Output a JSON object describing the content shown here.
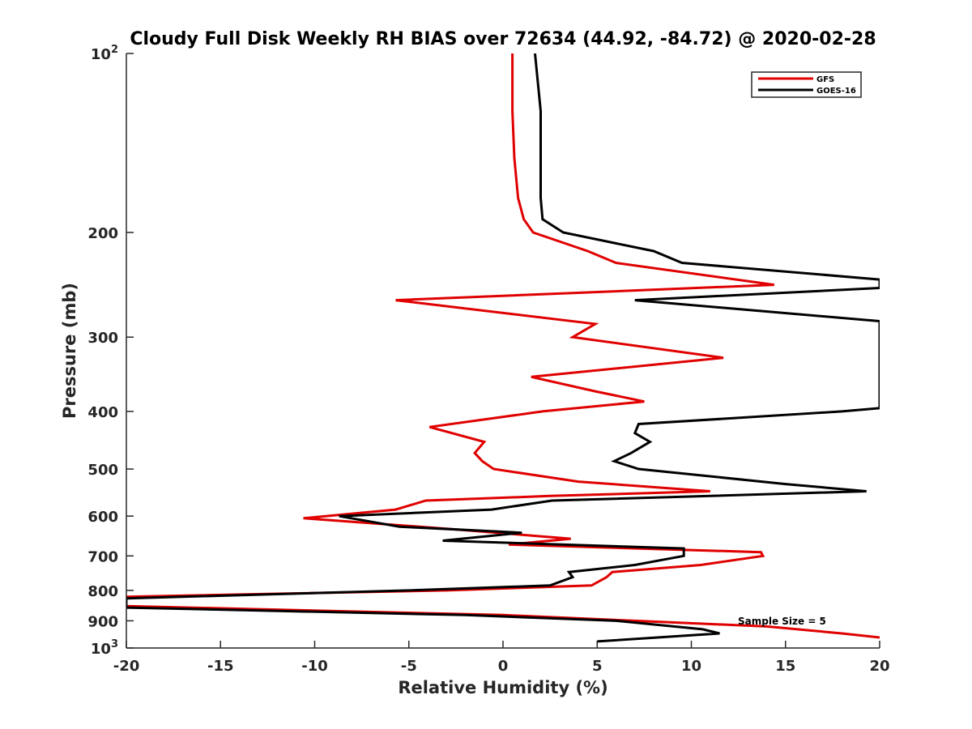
{
  "chart_data": {
    "type": "line",
    "title": "Cloudy Full Disk Weekly RH BIAS over 72634 (44.92, -84.72) @ 2020-02-28",
    "xlabel": "Relative Humidity (%)",
    "ylabel": "Pressure (mb)",
    "xlim": [
      -20,
      20
    ],
    "ylim": [
      100,
      1000
    ],
    "y_scale": "log",
    "y_reversed": true,
    "grid": false,
    "legend_position": "top-right",
    "x_ticks": [
      "-20",
      "-15",
      "-10",
      "-5",
      "0",
      "5",
      "10",
      "15",
      "20"
    ],
    "y_ticks": [
      {
        "value": 100,
        "base": "10",
        "exp": "2"
      },
      {
        "value": 200,
        "label": "200"
      },
      {
        "value": 300,
        "label": "300"
      },
      {
        "value": 400,
        "label": "400"
      },
      {
        "value": 500,
        "label": "500"
      },
      {
        "value": 600,
        "label": "600"
      },
      {
        "value": 700,
        "label": "700"
      },
      {
        "value": 800,
        "label": "800"
      },
      {
        "value": 900,
        "label": "900"
      },
      {
        "value": 1000,
        "base": "10",
        "exp": "3"
      }
    ],
    "annotation": "Sample Size = 5",
    "series": [
      {
        "name": "GFS",
        "color": "#e00000",
        "points": [
          {
            "p": 100,
            "v": 0.5
          },
          {
            "p": 125,
            "v": 0.5
          },
          {
            "p": 150,
            "v": 0.6
          },
          {
            "p": 175,
            "v": 0.8
          },
          {
            "p": 190,
            "v": 1.1
          },
          {
            "p": 200,
            "v": 1.6
          },
          {
            "p": 215,
            "v": 4.5
          },
          {
            "p": 225,
            "v": 6.0
          },
          {
            "p": 245,
            "v": 14.4
          },
          {
            "p": 260,
            "v": -5.7
          },
          {
            "p": 285,
            "v": 4.9
          },
          {
            "p": 300,
            "v": 3.7
          },
          {
            "p": 325,
            "v": 11.7
          },
          {
            "p": 350,
            "v": 1.5
          },
          {
            "p": 370,
            "v": 4.9
          },
          {
            "p": 385,
            "v": 7.5
          },
          {
            "p": 400,
            "v": 2.1
          },
          {
            "p": 425,
            "v": -3.9
          },
          {
            "p": 450,
            "v": -1.0
          },
          {
            "p": 470,
            "v": -1.5
          },
          {
            "p": 485,
            "v": -1.1
          },
          {
            "p": 500,
            "v": -0.5
          },
          {
            "p": 525,
            "v": 4.0
          },
          {
            "p": 545,
            "v": 11.0
          },
          {
            "p": 555,
            "v": 2.5
          },
          {
            "p": 565,
            "v": -4.1
          },
          {
            "p": 585,
            "v": -5.7
          },
          {
            "p": 605,
            "v": -10.6
          },
          {
            "p": 630,
            "v": -3.0
          },
          {
            "p": 655,
            "v": 3.6
          },
          {
            "p": 670,
            "v": 0.3
          },
          {
            "p": 690,
            "v": 13.7
          },
          {
            "p": 700,
            "v": 13.8
          },
          {
            "p": 725,
            "v": 10.5
          },
          {
            "p": 745,
            "v": 5.8
          },
          {
            "p": 760,
            "v": 5.5
          },
          {
            "p": 785,
            "v": 4.7
          },
          {
            "p": 800,
            "v": -3.0
          },
          {
            "p": 820,
            "v": -20.0
          },
          {
            "p": 850,
            "v": -20.0
          },
          {
            "p": 880,
            "v": 0.0
          },
          {
            "p": 900,
            "v": 7.0
          },
          {
            "p": 920,
            "v": 14.0
          },
          {
            "p": 945,
            "v": 18.0
          },
          {
            "p": 960,
            "v": 20.0
          }
        ]
      },
      {
        "name": "GOES-16",
        "color": "#000000",
        "points": [
          {
            "p": 100,
            "v": 1.7
          },
          {
            "p": 125,
            "v": 2.0
          },
          {
            "p": 150,
            "v": 2.0
          },
          {
            "p": 175,
            "v": 2.0
          },
          {
            "p": 190,
            "v": 2.1
          },
          {
            "p": 200,
            "v": 3.2
          },
          {
            "p": 215,
            "v": 8.0
          },
          {
            "p": 225,
            "v": 9.5
          },
          {
            "p": 240,
            "v": 20.0
          },
          {
            "p": 248,
            "v": 20.0
          },
          {
            "p": 260,
            "v": 7.0
          },
          {
            "p": 282,
            "v": 20.0
          },
          {
            "p": 395,
            "v": 20.0
          },
          {
            "p": 400,
            "v": 18.0
          },
          {
            "p": 420,
            "v": 7.2
          },
          {
            "p": 435,
            "v": 7.0
          },
          {
            "p": 450,
            "v": 7.8
          },
          {
            "p": 470,
            "v": 6.8
          },
          {
            "p": 485,
            "v": 5.9
          },
          {
            "p": 500,
            "v": 7.2
          },
          {
            "p": 530,
            "v": 15.0
          },
          {
            "p": 545,
            "v": 19.3
          },
          {
            "p": 565,
            "v": 2.6
          },
          {
            "p": 585,
            "v": -0.6
          },
          {
            "p": 600,
            "v": -8.7
          },
          {
            "p": 625,
            "v": -5.5
          },
          {
            "p": 640,
            "v": 1.0
          },
          {
            "p": 660,
            "v": -3.2
          },
          {
            "p": 680,
            "v": 9.6
          },
          {
            "p": 700,
            "v": 9.6
          },
          {
            "p": 725,
            "v": 7.0
          },
          {
            "p": 745,
            "v": 3.5
          },
          {
            "p": 760,
            "v": 3.7
          },
          {
            "p": 785,
            "v": 2.5
          },
          {
            "p": 800,
            "v": -5.0
          },
          {
            "p": 825,
            "v": -20.0
          },
          {
            "p": 855,
            "v": -20.0
          },
          {
            "p": 880,
            "v": -2.0
          },
          {
            "p": 900,
            "v": 6.0
          },
          {
            "p": 930,
            "v": 10.6
          },
          {
            "p": 945,
            "v": 11.5
          },
          {
            "p": 975,
            "v": 5.0
          }
        ]
      }
    ]
  }
}
